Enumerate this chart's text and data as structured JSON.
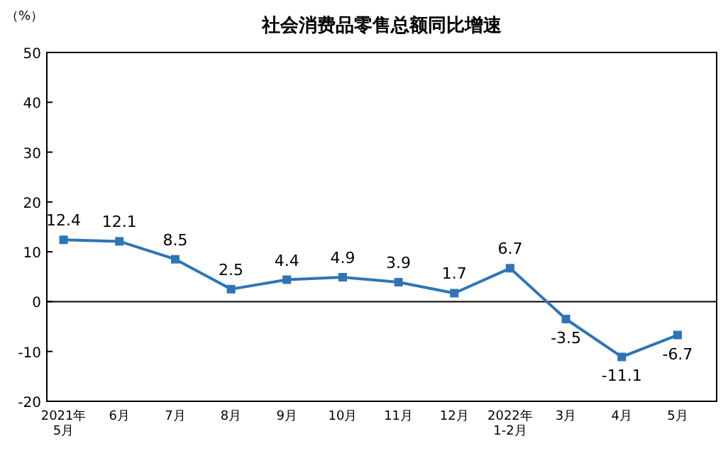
{
  "chart_data": {
    "type": "line",
    "title": "社会消费品零售总额同比增速",
    "ylabel": "（%）",
    "categories": [
      "2021年\n5月",
      "6月",
      "7月",
      "8月",
      "9月",
      "10月",
      "11月",
      "12月",
      "2022年\n1-2月",
      "3月",
      "4月",
      "5月"
    ],
    "series": [
      {
        "color": "#2e75b6",
        "values": [
          12.4,
          12.1,
          8.5,
          2.5,
          4.4,
          4.9,
          3.9,
          1.7,
          6.7,
          -3.5,
          -11.1,
          -6.7
        ]
      }
    ],
    "ylim": [
      -20,
      50
    ],
    "yticks": [
      -20,
      -10,
      0,
      10,
      20,
      30,
      40,
      50
    ],
    "ref_lines": [
      {
        "axis": "y",
        "value": 0,
        "color": "#000000"
      }
    ],
    "marker": "square",
    "data_labels": true
  }
}
